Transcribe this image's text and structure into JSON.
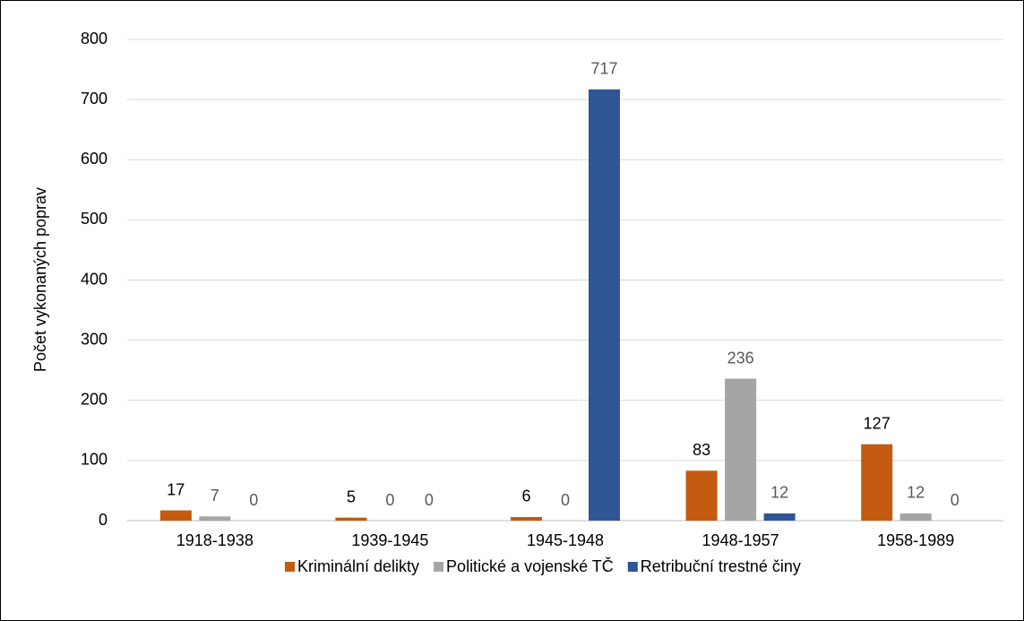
{
  "chart_data": {
    "type": "bar",
    "y_label": "Počet vykonaných poprav",
    "categories": [
      "1918-1938",
      "1939-1945",
      "1945-1948",
      "1948-1957",
      "1958-1989"
    ],
    "series": [
      {
        "name": "Kriminální delikty",
        "color": "#c55a11",
        "values": [
          17,
          5,
          6,
          83,
          127
        ]
      },
      {
        "name": "Politické a vojenské TČ",
        "color": "#a5a5a5",
        "values": [
          7,
          0,
          0,
          236,
          12
        ]
      },
      {
        "name": "Retribuční trestné činy",
        "color": "#2f5597",
        "values": [
          0,
          0,
          717,
          12,
          0
        ]
      }
    ],
    "ylim": [
      0,
      800
    ],
    "yticks": [
      0,
      100,
      200,
      300,
      400,
      500,
      600,
      700,
      800
    ],
    "grid": true,
    "legend": "bottom"
  }
}
